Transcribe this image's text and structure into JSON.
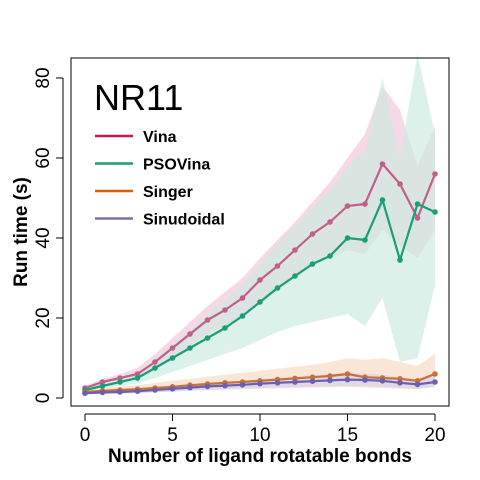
{
  "chart_data": {
    "type": "line",
    "title": "NR11",
    "xlabel": "Number of ligand rotatable bonds",
    "ylabel": "Run time (s)",
    "xlim": [
      -0.8,
      20.8
    ],
    "ylim": [
      -2,
      85
    ],
    "xticks": [
      0,
      5,
      10,
      15,
      20
    ],
    "yticks": [
      0,
      20,
      40,
      60,
      80
    ],
    "grid": false,
    "legend_position": "top-left",
    "x": [
      0,
      1,
      2,
      3,
      4,
      5,
      6,
      7,
      8,
      9,
      10,
      11,
      12,
      13,
      14,
      15,
      16,
      17,
      18,
      19,
      20
    ],
    "series": [
      {
        "name": "Vina",
        "color": "#c2185b",
        "line_color": "#c0608a",
        "band_color": "#f4c7dd",
        "values": [
          2.5,
          4.0,
          5.0,
          6.0,
          9.0,
          12.5,
          16.0,
          19.5,
          22.0,
          25.0,
          29.5,
          33.0,
          37.0,
          41.0,
          44.0,
          48.0,
          48.5,
          58.5,
          53.5,
          45.0,
          56.0
        ],
        "lower": [
          2.0,
          3.2,
          4.0,
          4.8,
          7.0,
          10.0,
          13.0,
          16.0,
          18.0,
          20.5,
          24.0,
          27.0,
          30.0,
          33.0,
          35.0,
          37.0,
          36.0,
          42.0,
          38.0,
          35.0,
          42.0
        ],
        "upper": [
          3.0,
          4.8,
          6.0,
          7.5,
          11.0,
          15.0,
          19.0,
          23.0,
          26.5,
          30.0,
          35.0,
          39.5,
          44.0,
          49.0,
          54.0,
          60.0,
          66.0,
          78.0,
          72.0,
          58.0,
          68.0
        ]
      },
      {
        "name": "PSOVina",
        "color": "#1b9e77",
        "line_color": "#1b9e77",
        "band_color": "#cdebdf",
        "values": [
          2.0,
          3.0,
          4.0,
          5.0,
          7.5,
          10.0,
          12.5,
          15.0,
          17.5,
          20.5,
          24.0,
          27.5,
          30.5,
          33.5,
          35.5,
          40.0,
          39.5,
          49.5,
          34.5,
          48.5,
          46.5
        ],
        "lower": [
          1.5,
          2.2,
          3.0,
          3.7,
          5.0,
          6.5,
          8.0,
          9.5,
          11.0,
          12.5,
          14.5,
          16.5,
          18.0,
          19.0,
          20.0,
          21.0,
          18.0,
          25.0,
          9.0,
          10.0,
          28.0
        ],
        "upper": [
          2.7,
          4.0,
          5.2,
          6.5,
          10.0,
          13.5,
          17.0,
          21.0,
          24.5,
          28.5,
          33.5,
          38.5,
          43.0,
          47.5,
          52.0,
          58.0,
          62.0,
          80.0,
          60.0,
          86.0,
          66.0
        ]
      },
      {
        "name": "Singer",
        "color": "#d95f02",
        "line_color": "#c8703a",
        "band_color": "#f8dcc4",
        "values": [
          1.5,
          1.8,
          2.0,
          2.2,
          2.5,
          2.8,
          3.2,
          3.5,
          3.8,
          4.0,
          4.3,
          4.6,
          4.9,
          5.2,
          5.5,
          6.0,
          5.2,
          5.0,
          4.8,
          4.3,
          6.0
        ],
        "lower": [
          1.0,
          1.2,
          1.3,
          1.4,
          1.5,
          1.6,
          1.8,
          2.0,
          2.1,
          2.2,
          2.3,
          2.4,
          2.5,
          2.6,
          2.7,
          2.8,
          2.6,
          2.5,
          2.3,
          2.2,
          3.0
        ],
        "upper": [
          2.0,
          2.5,
          2.8,
          3.2,
          3.8,
          4.3,
          4.8,
          5.3,
          5.8,
          6.3,
          6.8,
          7.3,
          7.8,
          8.3,
          9.0,
          10.0,
          9.5,
          10.0,
          9.0,
          8.0,
          11.0
        ]
      },
      {
        "name": "Sinudoidal",
        "color": "#7570b3",
        "line_color": "#6a5fb0",
        "band_color": "#d5d3ea",
        "values": [
          1.2,
          1.4,
          1.5,
          1.7,
          2.0,
          2.3,
          2.6,
          2.9,
          3.1,
          3.3,
          3.6,
          3.8,
          4.0,
          4.2,
          4.4,
          4.6,
          4.5,
          4.3,
          3.8,
          3.4,
          4.0
        ],
        "lower": [
          0.9,
          1.0,
          1.1,
          1.2,
          1.4,
          1.6,
          1.8,
          2.0,
          2.2,
          2.3,
          2.5,
          2.6,
          2.7,
          2.8,
          2.9,
          3.0,
          2.9,
          2.8,
          2.5,
          2.3,
          2.7
        ],
        "upper": [
          1.5,
          1.8,
          2.0,
          2.2,
          2.6,
          3.0,
          3.4,
          3.8,
          4.0,
          4.3,
          4.7,
          5.0,
          5.3,
          5.6,
          5.9,
          6.2,
          6.1,
          5.8,
          5.2,
          4.6,
          5.4
        ]
      }
    ]
  }
}
